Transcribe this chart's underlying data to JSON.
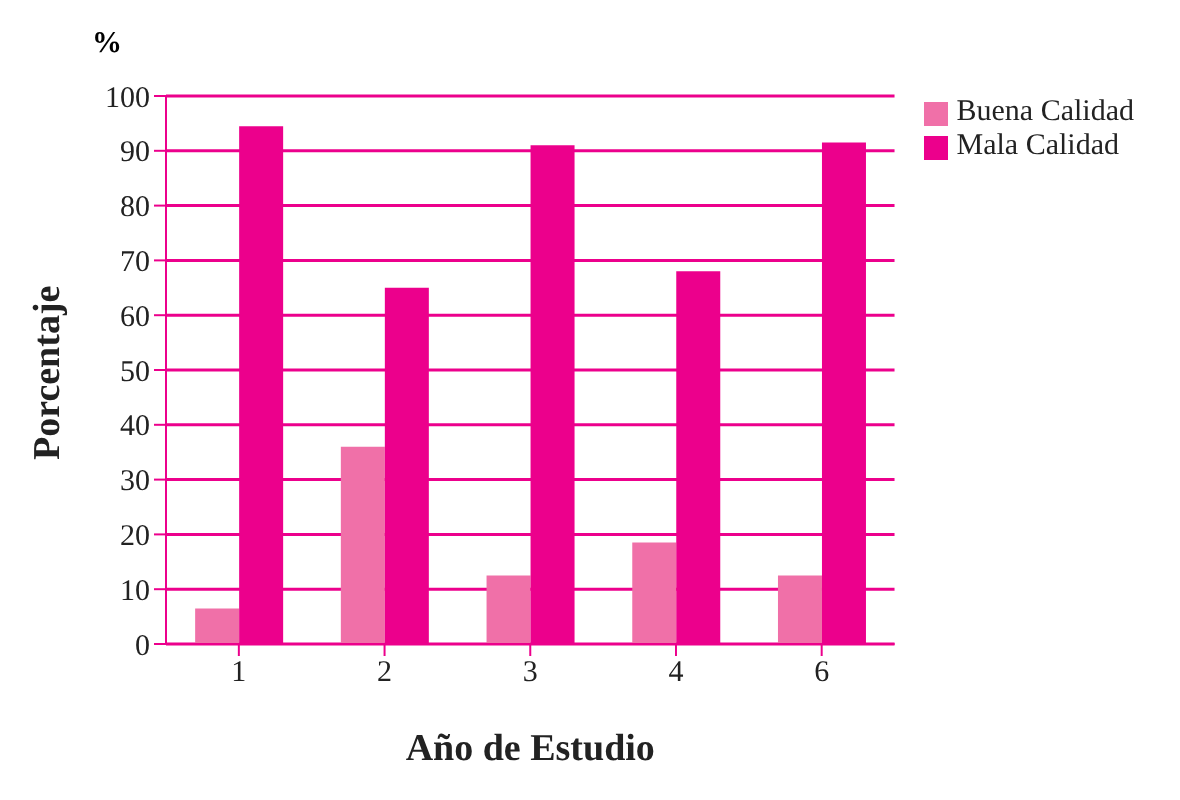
{
  "chart_data": {
    "type": "bar",
    "xlabel": "Año de Estudio",
    "ylabel": "Porcentaje",
    "annotations": [
      "%"
    ],
    "categories": [
      "1",
      "2",
      "3",
      "4",
      "6"
    ],
    "series": [
      {
        "name": "Buena Calidad",
        "color": "#f070a8",
        "values": [
          6.5,
          36,
          12.5,
          18.5,
          12.5
        ]
      },
      {
        "name": "Mala Calidad",
        "color": "#ec008c",
        "values": [
          94.5,
          65,
          91,
          68,
          91.5
        ]
      }
    ],
    "ylim": [
      0,
      100
    ],
    "yticks": [
      0,
      10,
      20,
      30,
      40,
      50,
      60,
      70,
      80,
      90,
      100
    ],
    "grid": "y",
    "legend": "top right"
  }
}
